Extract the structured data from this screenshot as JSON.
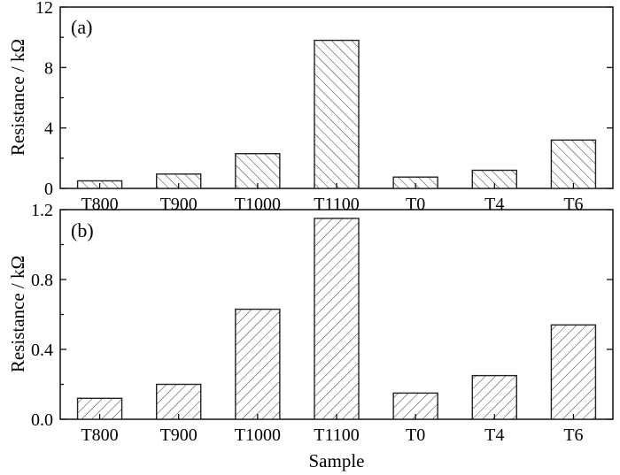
{
  "chart_data": [
    {
      "type": "bar",
      "panel_label": "(a)",
      "categories": [
        "T800",
        "T900",
        "T1000",
        "T1100",
        "T0",
        "T4",
        "T6"
      ],
      "values": [
        0.5,
        0.95,
        2.3,
        9.8,
        0.75,
        1.2,
        3.2
      ],
      "ylabel": "Resistance / kΩ",
      "xlabel": "",
      "ylim": [
        0,
        12
      ],
      "yticks": [
        "0",
        "4",
        "8",
        "12"
      ],
      "grid": false,
      "legend": "none",
      "hatch": "backslash"
    },
    {
      "type": "bar",
      "panel_label": "(b)",
      "categories": [
        "T800",
        "T900",
        "T1000",
        "T1100",
        "T0",
        "T4",
        "T6"
      ],
      "values": [
        0.12,
        0.2,
        0.63,
        1.15,
        0.15,
        0.25,
        0.54
      ],
      "ylabel": "Resistance / kΩ",
      "xlabel": "Sample",
      "ylim": [
        0,
        1.2
      ],
      "yticks": [
        "0.0",
        "0.4",
        "0.8",
        "1.2"
      ],
      "grid": false,
      "legend": "none",
      "hatch": "slash"
    }
  ]
}
